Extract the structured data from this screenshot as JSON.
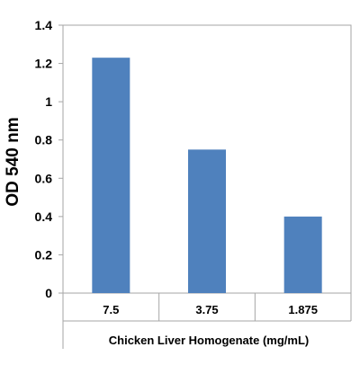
{
  "chart_data": {
    "type": "bar",
    "title": "",
    "xlabel": "Chicken Liver Homogenate (mg/mL)",
    "ylabel": "OD 540 nm",
    "categories": [
      "7.5",
      "3.75",
      "1.875"
    ],
    "values": [
      1.23,
      0.75,
      0.4
    ],
    "ylim": [
      0,
      1.4
    ],
    "yticks": [
      "0",
      "0.2",
      "0.4",
      "0.6",
      "0.8",
      "1",
      "1.2",
      "1.4"
    ],
    "grid": false,
    "legend": "none",
    "bar_color": "#4f81bd",
    "axis_color": "#a6a6a6"
  }
}
